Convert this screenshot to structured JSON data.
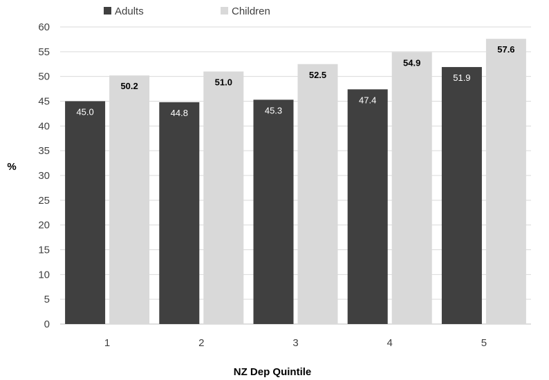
{
  "chart_data": {
    "type": "bar",
    "categories": [
      "1",
      "2",
      "3",
      "4",
      "5"
    ],
    "series": [
      {
        "name": "Adults",
        "values": [
          45.0,
          44.8,
          45.3,
          47.4,
          51.9
        ],
        "color": "#404040"
      },
      {
        "name": "Children",
        "values": [
          50.2,
          51.0,
          52.5,
          54.9,
          57.6
        ],
        "color": "#d9d9d9"
      }
    ],
    "data_labels": {
      "Adults": [
        "45.0",
        "44.8",
        "45.3",
        "47.4",
        "51.9"
      ],
      "Children": [
        "50.2",
        "51.0",
        "52.5",
        "54.9",
        "57.6"
      ]
    },
    "title": "",
    "xlabel": "NZ Dep Quintile",
    "ylabel": "%",
    "ylim": [
      0,
      60
    ],
    "yticks": [
      0,
      5,
      10,
      15,
      20,
      25,
      30,
      35,
      40,
      45,
      50,
      55,
      60
    ],
    "grid": true,
    "legend_position": "top-left"
  }
}
